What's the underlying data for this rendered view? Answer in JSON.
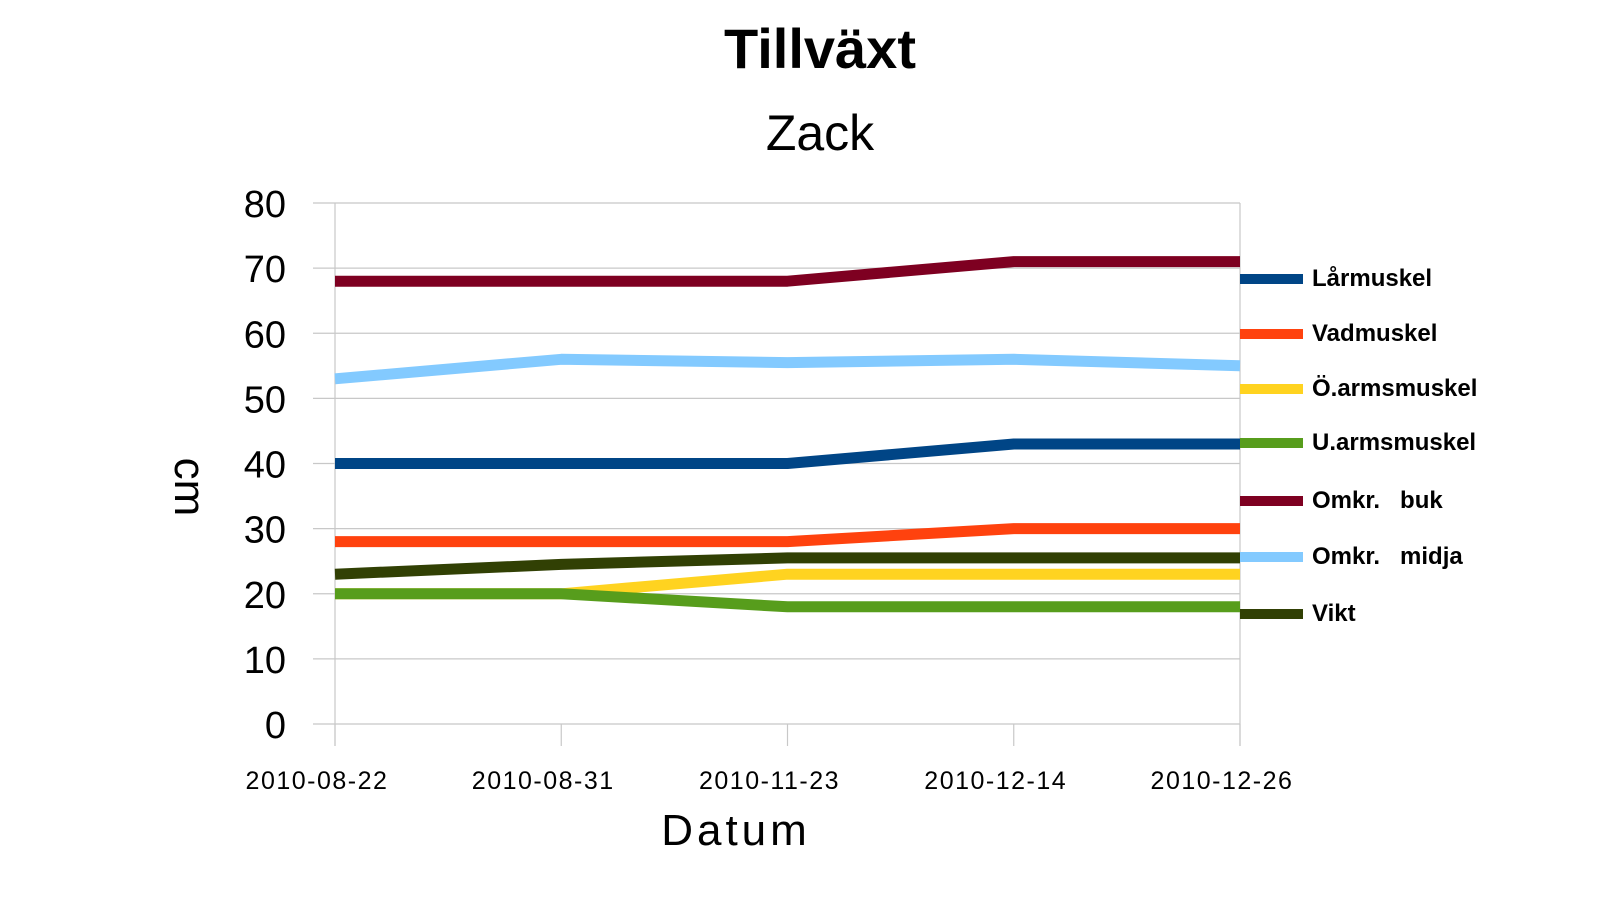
{
  "chart_data": {
    "type": "line",
    "title": "Tillväxt",
    "subtitle": "Zack",
    "xlabel": "Datum",
    "ylabel": "cm",
    "ylim": [
      0,
      80
    ],
    "yticks": [
      0,
      10,
      20,
      30,
      40,
      50,
      60,
      70,
      80
    ],
    "categories": [
      "2010-08-22",
      "2010-08-31",
      "2010-11-23",
      "2010-12-14",
      "2010-12-26"
    ],
    "grid": true,
    "legend_position": "right",
    "series": [
      {
        "name": "Lårmuskel",
        "color": "#004586",
        "values": [
          40,
          40,
          40,
          43,
          43
        ]
      },
      {
        "name": "Vadmuskel",
        "color": "#FF420E",
        "values": [
          28,
          28,
          28,
          30,
          30
        ]
      },
      {
        "name": "Ö.armsmuskel",
        "color": "#FFD320",
        "values": [
          20,
          20,
          23,
          23,
          23
        ]
      },
      {
        "name": "U.armsmuskel",
        "color": "#579D1C",
        "values": [
          20,
          20,
          18,
          18,
          18
        ]
      },
      {
        "name": "Omkr.   buk",
        "color": "#7E0021",
        "values": [
          68,
          68,
          68,
          71,
          71
        ]
      },
      {
        "name": "Omkr.   midja",
        "color": "#83CAFF",
        "values": [
          53,
          56,
          55.5,
          56,
          55
        ]
      },
      {
        "name": "Vikt",
        "color": "#314004",
        "values": [
          23,
          24.5,
          25.5,
          25.5,
          25.5
        ]
      }
    ]
  }
}
